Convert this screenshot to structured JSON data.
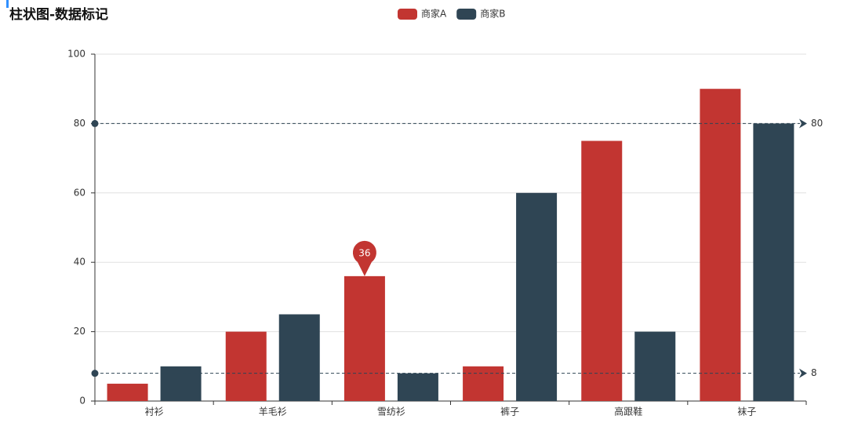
{
  "chart_data": {
    "type": "bar",
    "title": "柱状图-数据标记",
    "categories": [
      "衬衫",
      "羊毛衫",
      "雪纺衫",
      "裤子",
      "高跟鞋",
      "袜子"
    ],
    "series": [
      {
        "name": "商家A",
        "color": "#c23531",
        "values": [
          5,
          20,
          36,
          10,
          75,
          90
        ]
      },
      {
        "name": "商家B",
        "color": "#2f4554",
        "values": [
          10,
          25,
          8,
          60,
          20,
          80
        ]
      }
    ],
    "ylim": [
      0,
      100
    ],
    "yticks": [
      0,
      20,
      40,
      60,
      80,
      100
    ],
    "grid": true,
    "mark_point": {
      "series": "商家A",
      "category": "雪纺衫",
      "value": 36
    },
    "mark_lines": [
      80,
      8
    ]
  }
}
